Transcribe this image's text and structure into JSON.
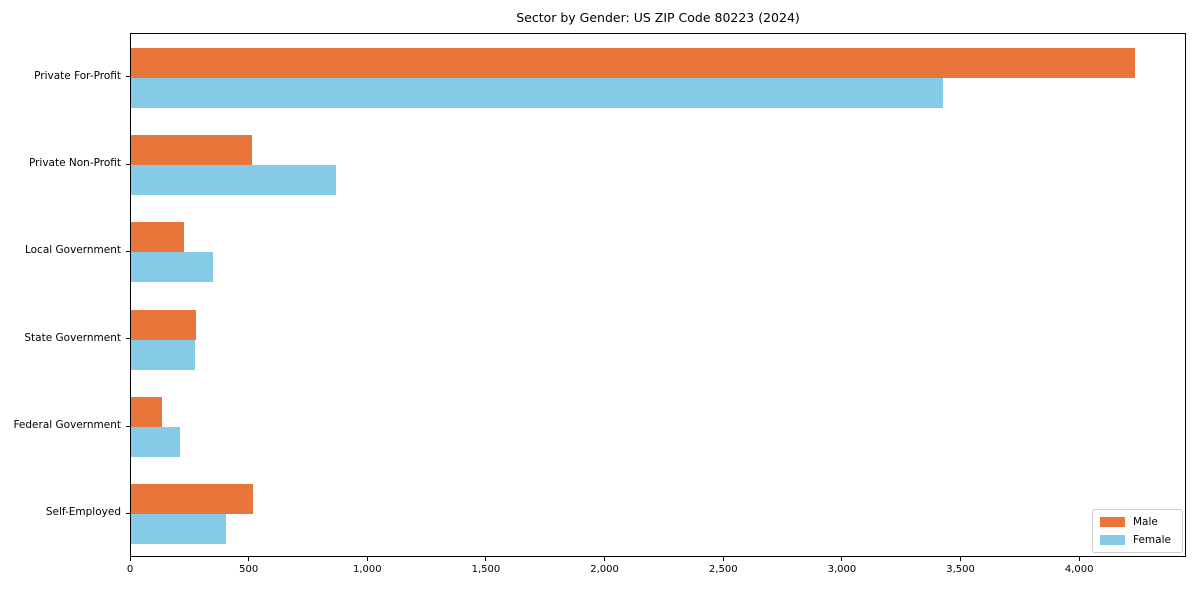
{
  "chart_data": {
    "type": "bar",
    "orientation": "horizontal",
    "title": "Sector by Gender: US ZIP Code 80223 (2024)",
    "xlabel": "",
    "ylabel": "",
    "categories": [
      "Private For-Profit",
      "Private Non-Profit",
      "Local Government",
      "State Government",
      "Federal Government",
      "Self-Employed"
    ],
    "series": [
      {
        "name": "Male",
        "color": "#e8763a",
        "values": [
          4230,
          510,
          225,
          275,
          130,
          515
        ]
      },
      {
        "name": "Female",
        "color": "#85cbe8",
        "values": [
          3420,
          865,
          345,
          270,
          205,
          400
        ]
      }
    ],
    "xlim": [
      0,
      4450
    ],
    "xticks": [
      0,
      500,
      1000,
      1500,
      2000,
      2500,
      3000,
      3500,
      4000
    ],
    "xtick_labels": [
      "0",
      "500",
      "1,000",
      "1,500",
      "2,000",
      "2,500",
      "3,000",
      "3,500",
      "4,000"
    ],
    "grid": false,
    "legend_position": "lower right"
  }
}
